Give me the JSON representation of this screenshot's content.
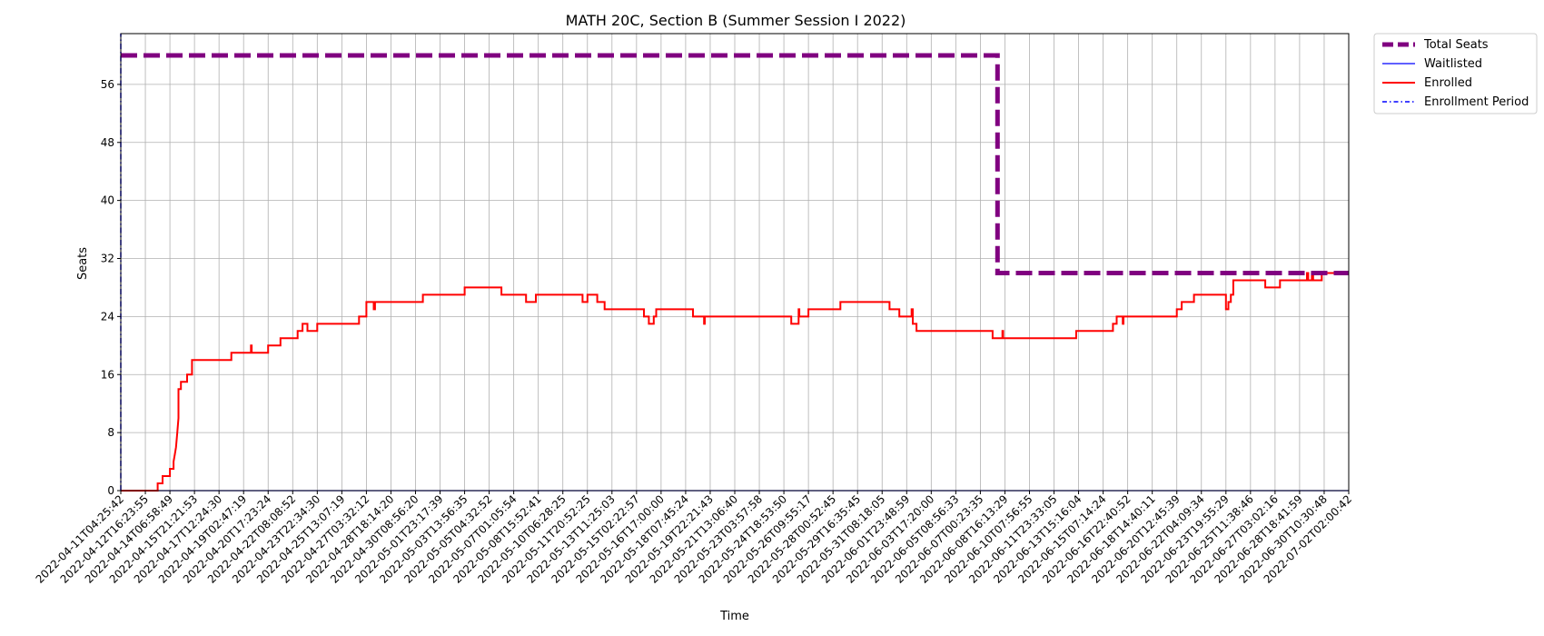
{
  "chart_data": {
    "type": "line",
    "title": "MATH 20C, Section B (Summer Session I 2022)",
    "xlabel": "Time",
    "ylabel": "Seats",
    "ylim": [
      0,
      63
    ],
    "yticks": [
      0,
      8,
      16,
      24,
      32,
      40,
      48,
      56
    ],
    "grid": true,
    "legend_position": "outside-top-right",
    "x_tick_labels": [
      "2022-04-11T04:25:42",
      "2022-04-12T16:23:55",
      "2022-04-14T06:58:49",
      "2022-04-15T21:21:53",
      "2022-04-17T12:24:30",
      "2022-04-19T02:47:19",
      "2022-04-20T17:23:24",
      "2022-04-22T08:08:52",
      "2022-04-23T22:34:30",
      "2022-04-25T13:07:19",
      "2022-04-27T03:32:12",
      "2022-04-28T18:14:20",
      "2022-04-30T08:56:20",
      "2022-05-01T23:17:39",
      "2022-05-03T13:56:35",
      "2022-05-05T04:32:52",
      "2022-05-07T01:05:54",
      "2022-05-08T15:52:41",
      "2022-05-10T06:28:25",
      "2022-05-11T20:52:25",
      "2022-05-13T11:25:03",
      "2022-05-15T02:22:57",
      "2022-05-16T17:00:00",
      "2022-05-18T07:45:24",
      "2022-05-19T22:21:43",
      "2022-05-21T13:06:40",
      "2022-05-23T03:57:58",
      "2022-05-24T18:53:50",
      "2022-05-26T09:55:17",
      "2022-05-28T00:52:45",
      "2022-05-29T16:35:45",
      "2022-05-31T08:18:05",
      "2022-06-01T23:48:59",
      "2022-06-03T17:20:00",
      "2022-06-05T08:56:33",
      "2022-06-07T00:23:35",
      "2022-06-08T16:13:29",
      "2022-06-10T07:56:55",
      "2022-06-11T23:33:05",
      "2022-06-13T15:16:04",
      "2022-06-15T07:14:24",
      "2022-06-16T22:40:52",
      "2022-06-18T14:40:11",
      "2022-06-20T12:45:39",
      "2022-06-22T04:09:34",
      "2022-06-23T19:55:29",
      "2022-06-25T11:38:46",
      "2022-06-27T03:02:16",
      "2022-06-28T18:41:59",
      "2022-06-30T10:30:48",
      "2022-07-02T02:00:42"
    ],
    "series": [
      {
        "name": "Total Seats",
        "color": "#800080",
        "style": "dashed-thick",
        "points": [
          [
            0,
            60
          ],
          [
            35.7,
            60
          ],
          [
            35.7,
            30
          ],
          [
            50,
            30
          ]
        ]
      },
      {
        "name": "Waitlisted",
        "color": "#0000ff",
        "style": "solid-thin",
        "points": [
          [
            0,
            0
          ],
          [
            50,
            0
          ]
        ]
      },
      {
        "name": "Enrolled",
        "color": "#ff0000",
        "style": "solid",
        "points": [
          [
            0,
            0
          ],
          [
            1.5,
            0
          ],
          [
            1.5,
            1
          ],
          [
            1.7,
            1
          ],
          [
            1.7,
            2
          ],
          [
            2.0,
            2
          ],
          [
            2.0,
            3
          ],
          [
            2.15,
            3
          ],
          [
            2.15,
            4
          ],
          [
            2.2,
            5
          ],
          [
            2.25,
            6
          ],
          [
            2.3,
            8
          ],
          [
            2.35,
            10
          ],
          [
            2.35,
            14
          ],
          [
            2.45,
            14
          ],
          [
            2.45,
            15
          ],
          [
            2.7,
            15
          ],
          [
            2.7,
            16
          ],
          [
            2.9,
            16
          ],
          [
            2.9,
            18
          ],
          [
            4.5,
            18
          ],
          [
            4.5,
            19
          ],
          [
            5.3,
            19
          ],
          [
            5.3,
            20
          ],
          [
            5.33,
            20
          ],
          [
            5.33,
            19
          ],
          [
            6.0,
            19
          ],
          [
            6.0,
            20
          ],
          [
            6.5,
            20
          ],
          [
            6.5,
            21
          ],
          [
            7.2,
            21
          ],
          [
            7.2,
            22
          ],
          [
            7.4,
            22
          ],
          [
            7.4,
            23
          ],
          [
            7.6,
            23
          ],
          [
            7.6,
            22
          ],
          [
            8.0,
            22
          ],
          [
            8.0,
            23
          ],
          [
            9.7,
            23
          ],
          [
            9.7,
            24
          ],
          [
            10.0,
            24
          ],
          [
            10.0,
            26
          ],
          [
            10.3,
            26
          ],
          [
            10.3,
            25
          ],
          [
            10.35,
            25
          ],
          [
            10.35,
            26
          ],
          [
            12.3,
            26
          ],
          [
            12.3,
            27
          ],
          [
            14.0,
            27
          ],
          [
            14.0,
            28
          ],
          [
            15.5,
            28
          ],
          [
            15.5,
            27
          ],
          [
            16.5,
            27
          ],
          [
            16.5,
            26
          ],
          [
            16.9,
            26
          ],
          [
            16.9,
            27
          ],
          [
            18.8,
            27
          ],
          [
            18.8,
            26
          ],
          [
            19.0,
            26
          ],
          [
            19.0,
            27
          ],
          [
            19.4,
            27
          ],
          [
            19.4,
            26
          ],
          [
            19.7,
            26
          ],
          [
            19.7,
            25
          ],
          [
            21.3,
            25
          ],
          [
            21.3,
            24
          ],
          [
            21.5,
            24
          ],
          [
            21.5,
            23
          ],
          [
            21.7,
            23
          ],
          [
            21.7,
            24
          ],
          [
            21.8,
            24
          ],
          [
            21.8,
            25
          ],
          [
            23.3,
            25
          ],
          [
            23.3,
            24
          ],
          [
            23.75,
            24
          ],
          [
            23.75,
            23
          ],
          [
            23.78,
            23
          ],
          [
            23.78,
            24
          ],
          [
            27.3,
            24
          ],
          [
            27.3,
            23
          ],
          [
            27.6,
            23
          ],
          [
            27.6,
            25
          ],
          [
            27.63,
            25
          ],
          [
            27.63,
            24
          ],
          [
            28.0,
            24
          ],
          [
            28.0,
            25
          ],
          [
            29.3,
            25
          ],
          [
            29.3,
            26
          ],
          [
            31.3,
            26
          ],
          [
            31.3,
            25
          ],
          [
            31.7,
            25
          ],
          [
            31.7,
            24
          ],
          [
            32.2,
            24
          ],
          [
            32.2,
            25
          ],
          [
            32.25,
            25
          ],
          [
            32.25,
            23
          ],
          [
            32.4,
            23
          ],
          [
            32.4,
            22
          ],
          [
            35.5,
            22
          ],
          [
            35.5,
            21
          ],
          [
            35.9,
            21
          ],
          [
            35.9,
            22
          ],
          [
            35.93,
            22
          ],
          [
            35.93,
            21
          ],
          [
            38.9,
            21
          ],
          [
            38.9,
            22
          ],
          [
            40.4,
            22
          ],
          [
            40.4,
            23
          ],
          [
            40.55,
            23
          ],
          [
            40.55,
            24
          ],
          [
            40.8,
            24
          ],
          [
            40.8,
            23
          ],
          [
            40.83,
            23
          ],
          [
            40.83,
            24
          ],
          [
            43.0,
            24
          ],
          [
            43.0,
            25
          ],
          [
            43.2,
            25
          ],
          [
            43.2,
            26
          ],
          [
            43.7,
            26
          ],
          [
            43.7,
            27
          ],
          [
            45.0,
            27
          ],
          [
            45.0,
            25
          ],
          [
            45.1,
            25
          ],
          [
            45.1,
            26
          ],
          [
            45.2,
            26
          ],
          [
            45.2,
            27
          ],
          [
            45.3,
            27
          ],
          [
            45.3,
            29
          ],
          [
            46.6,
            29
          ],
          [
            46.6,
            28
          ],
          [
            47.2,
            28
          ],
          [
            47.2,
            29
          ],
          [
            48.3,
            29
          ],
          [
            48.3,
            30
          ],
          [
            48.35,
            30
          ],
          [
            48.35,
            29
          ],
          [
            48.5,
            29
          ],
          [
            48.5,
            30
          ],
          [
            48.55,
            30
          ],
          [
            48.55,
            29
          ],
          [
            48.9,
            29
          ],
          [
            48.9,
            30
          ],
          [
            50,
            30
          ]
        ]
      },
      {
        "name": "Enrollment Period",
        "color": "#0000ff",
        "style": "dashdot-vertical",
        "points": [
          [
            0,
            0
          ],
          [
            0,
            63
          ]
        ]
      }
    ]
  }
}
